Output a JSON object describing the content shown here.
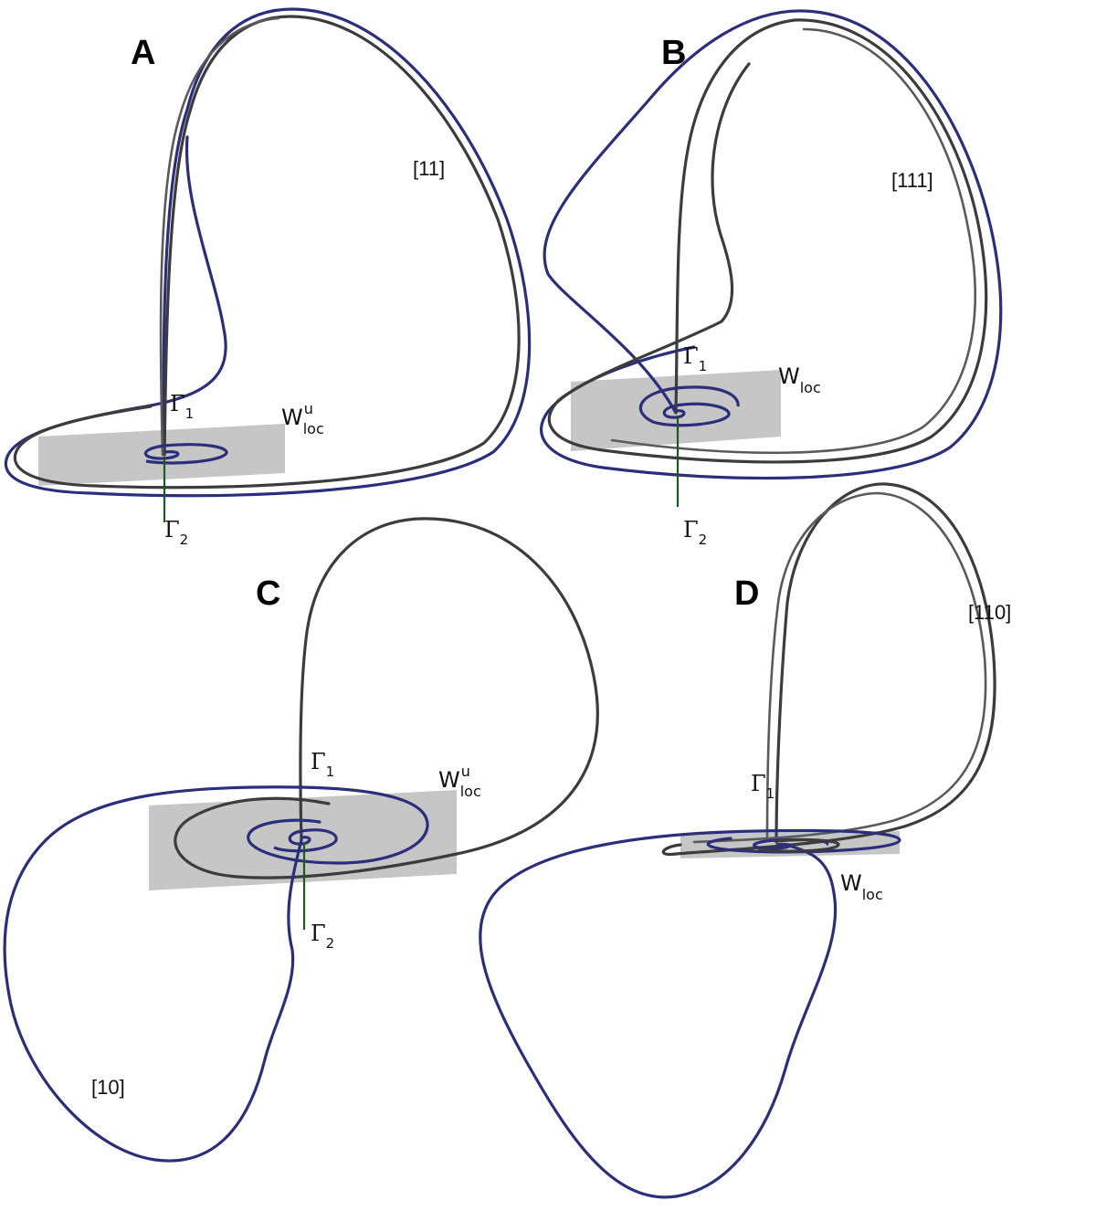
{
  "figure": {
    "panels": [
      {
        "id": "A",
        "letter": "A",
        "orbit_code": "[11]",
        "gamma1": {
          "symbol": "Γ",
          "sub": "1"
        },
        "gamma2": {
          "symbol": "Γ",
          "sub": "2"
        },
        "manifold": {
          "main": "W",
          "sub": "loc",
          "sup": "u"
        }
      },
      {
        "id": "B",
        "letter": "B",
        "orbit_code": "[111]",
        "gamma1": {
          "symbol": "Γ",
          "sub": "1"
        },
        "gamma2": {
          "symbol": "Γ",
          "sub": "2"
        },
        "manifold": {
          "main": "W",
          "sub": "loc",
          "sup": ""
        }
      },
      {
        "id": "C",
        "letter": "C",
        "orbit_code": "[10]",
        "gamma1": {
          "symbol": "Γ",
          "sub": "1"
        },
        "gamma2": {
          "symbol": "Γ",
          "sub": "2"
        },
        "manifold": {
          "main": "W",
          "sub": "loc",
          "sup": "u"
        }
      },
      {
        "id": "D",
        "letter": "D",
        "orbit_code": "[110]",
        "gamma1": {
          "symbol": "Γ",
          "sub": "1"
        },
        "manifold": {
          "main": "W",
          "sub": "loc",
          "sup": ""
        }
      }
    ],
    "colors": {
      "blue_trajectory": "#2b2e7a",
      "gray_trajectory": "#3c3c3c",
      "plane": "#c6c6c6",
      "stable_manifold": "#1d5a1d"
    }
  }
}
